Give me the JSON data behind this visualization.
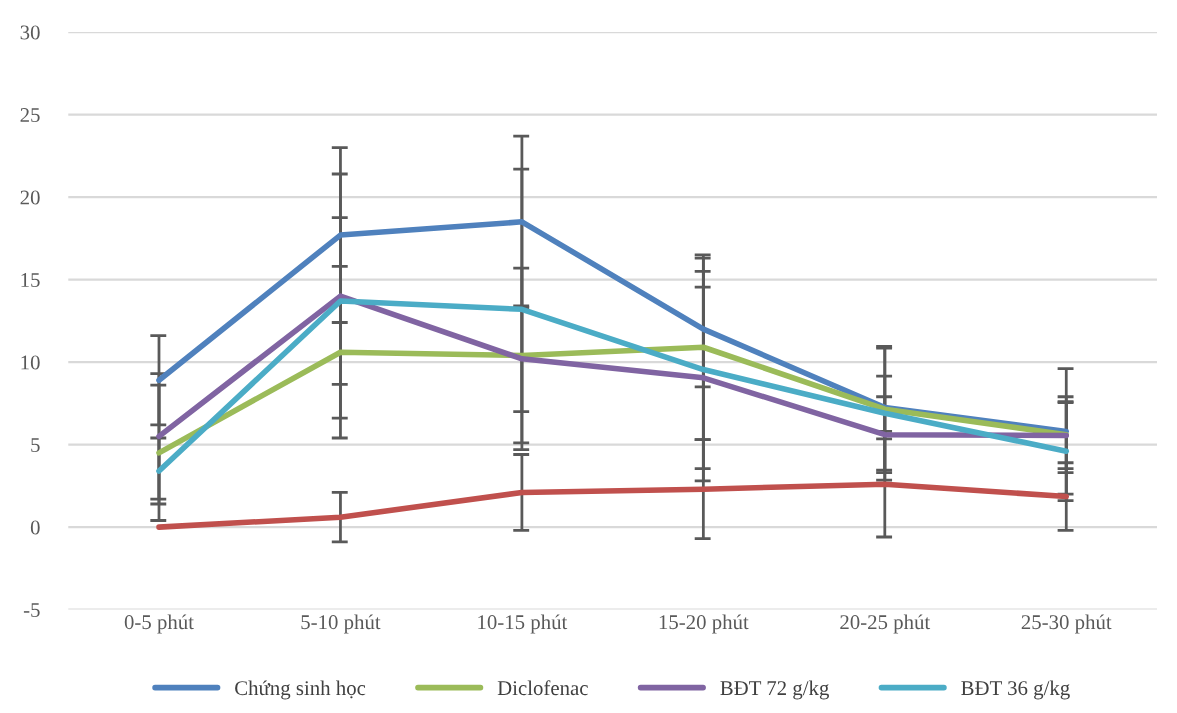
{
  "chart_data": {
    "type": "line",
    "categories": [
      "0-5 phút",
      "5-10 phút",
      "10-15 phút",
      "15-20 phút",
      "20-25 phút",
      "25-30 phút"
    ],
    "series": [
      {
        "name": "Chứng sinh học",
        "color": "#4f81bd",
        "values": [
          8.9,
          17.7,
          18.5,
          12.0,
          7.25,
          5.8
        ],
        "errors": [
          2.7,
          5.3,
          5.2,
          3.5,
          1.9,
          3.8
        ]
      },
      {
        "color": "#c0504d",
        "values": [
          0,
          0.6,
          2.1,
          2.3,
          2.6,
          1.85
        ],
        "errors": [
          null,
          1.5,
          2.3,
          3.0,
          3.2,
          2.05
        ]
      },
      {
        "name": "Diclofenac",
        "color": "#9bbb59",
        "values": [
          4.5,
          10.6,
          10.4,
          10.9,
          7.15,
          5.6
        ],
        "errors": [
          4.1,
          5.2,
          5.3,
          5.6,
          3.7,
          2.3
        ]
      },
      {
        "name": "BĐT 72 g/kg",
        "color": "#8064a2",
        "values": [
          5.5,
          14.0,
          10.2,
          9.05,
          5.6,
          5.55
        ],
        "errors": [
          3.8,
          7.4,
          3.2,
          5.5,
          2.3,
          2.0
        ]
      },
      {
        "name": "BĐT 36 g/kg",
        "color": "#4bacc6",
        "values": [
          3.4,
          13.7,
          13.2,
          9.55,
          6.9,
          4.6
        ],
        "errors": [
          2.0,
          5.05,
          8.5,
          6.75,
          4.05,
          3.0
        ]
      }
    ],
    "ylim": [
      -5,
      30
    ],
    "yticks": [
      -5,
      0,
      5,
      10,
      15,
      20,
      25,
      30
    ],
    "grid": "y",
    "legend": "bottom",
    "marker": "none",
    "line_style": "solid"
  }
}
